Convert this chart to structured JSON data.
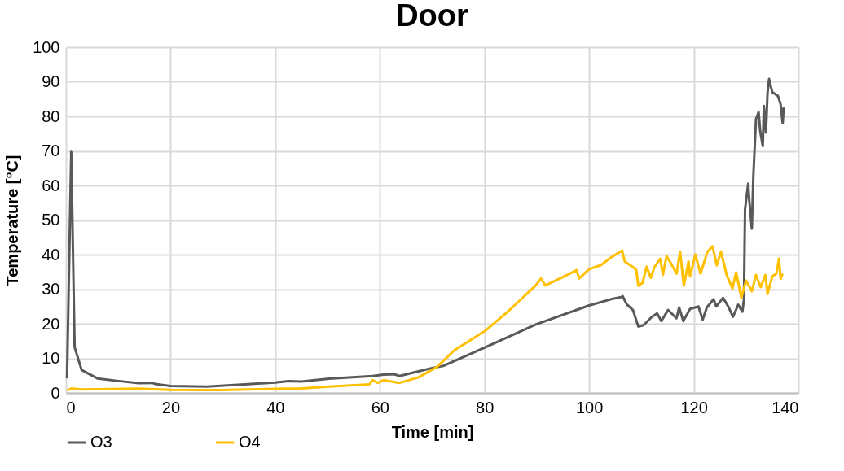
{
  "chart_data": {
    "type": "line",
    "title": "Door",
    "xlabel": "Time [min]",
    "ylabel": "Temperature [°C]",
    "xlim": [
      0,
      140
    ],
    "xticks": [
      0,
      20,
      40,
      60,
      80,
      100,
      120,
      140
    ],
    "ylim": [
      0,
      100
    ],
    "yticks": [
      0,
      10,
      20,
      30,
      40,
      50,
      60,
      70,
      80,
      90,
      100
    ],
    "grid": true,
    "legend": "bottom",
    "line_style": "solid",
    "marker": "none",
    "series": [
      {
        "name": "O3",
        "color": "#595959",
        "x": [
          0.2,
          1.0,
          1.65,
          3.0,
          6.0,
          9.7,
          13.9,
          16.5,
          17.0,
          20.0,
          26.9,
          40.0,
          42.5,
          45.0,
          50.3,
          58.6,
          60.7,
          62.7,
          63.75,
          70.0,
          72.1,
          80.0,
          89.8,
          100.0,
          104.2,
          106.3,
          106.4,
          107.2,
          108.4,
          109.4,
          110.4,
          112.0,
          113.0,
          113.8,
          115.1,
          116.7,
          117.2,
          118.0,
          119.3,
          120.9,
          121.7,
          122.5,
          123.8,
          124.3,
          125.6,
          126.7,
          127.5,
          128.5,
          129.3,
          129.6,
          129.8,
          130.4,
          130.6,
          131.1,
          131.4,
          131.9,
          132.4,
          132.7,
          133.2,
          133.4,
          133.8,
          134.1,
          134.4,
          135.0,
          136.1,
          136.6,
          137.0,
          137.2
        ],
        "values": [
          4.2,
          69.7,
          13.2,
          6.6,
          4.2,
          3.5,
          2.8,
          2.9,
          2.6,
          2.0,
          1.8,
          3.0,
          3.4,
          3.3,
          4.1,
          4.9,
          5.3,
          5.4,
          4.9,
          7.2,
          7.8,
          13.1,
          19.8,
          25.3,
          27.1,
          27.8,
          28.0,
          25.6,
          23.9,
          19.2,
          19.6,
          22.0,
          23.0,
          20.8,
          24.0,
          21.6,
          24.7,
          20.8,
          24.3,
          25.0,
          21.2,
          24.7,
          27.1,
          25.0,
          27.5,
          24.7,
          22.0,
          25.5,
          23.5,
          27.1,
          53.0,
          60.5,
          56.0,
          47.5,
          63.0,
          79.2,
          81.2,
          75.7,
          71.4,
          83.0,
          75.3,
          86.7,
          90.8,
          87.0,
          85.9,
          83.5,
          78.0,
          82.7
        ]
      },
      {
        "name": "O4",
        "color": "#ffc000",
        "x": [
          0.2,
          1.0,
          3.0,
          13.9,
          20.0,
          29.5,
          40.0,
          45.0,
          50.3,
          58.0,
          58.6,
          59.6,
          60.7,
          63.75,
          67.4,
          71.0,
          74.2,
          80.0,
          84.6,
          89.8,
          90.8,
          91.6,
          95.0,
          97.6,
          98.1,
          100.0,
          102.3,
          104.2,
          106.3,
          106.8,
          107.9,
          109.0,
          109.4,
          110.2,
          111.0,
          111.8,
          112.5,
          113.6,
          114.1,
          114.8,
          115.6,
          116.7,
          117.4,
          118.1,
          119.0,
          119.3,
          120.3,
          121.3,
          122.6,
          123.6,
          124.4,
          125.2,
          126.3,
          127.4,
          128.1,
          129.1,
          130.0,
          131.1,
          131.9,
          132.8,
          133.7,
          134.1,
          135.0,
          135.8,
          136.3,
          136.6,
          137.0
        ],
        "values": [
          0.7,
          1.3,
          1.0,
          1.25,
          0.9,
          0.8,
          1.2,
          1.3,
          1.8,
          2.5,
          3.7,
          2.9,
          3.7,
          2.9,
          4.5,
          7.6,
          12.3,
          17.8,
          23.7,
          31.1,
          33.1,
          31.1,
          33.5,
          35.5,
          33.1,
          35.8,
          37.0,
          39.2,
          41.2,
          38.0,
          36.9,
          35.7,
          31.0,
          31.8,
          36.5,
          33.3,
          36.5,
          38.8,
          34.1,
          39.6,
          37.6,
          34.5,
          40.8,
          31.0,
          38.0,
          33.7,
          40.0,
          34.5,
          40.8,
          42.4,
          36.9,
          40.8,
          34.1,
          30.2,
          34.9,
          27.5,
          32.5,
          29.4,
          34.1,
          30.6,
          34.1,
          28.6,
          33.7,
          34.5,
          38.8,
          33.0,
          34.5
        ]
      }
    ]
  }
}
